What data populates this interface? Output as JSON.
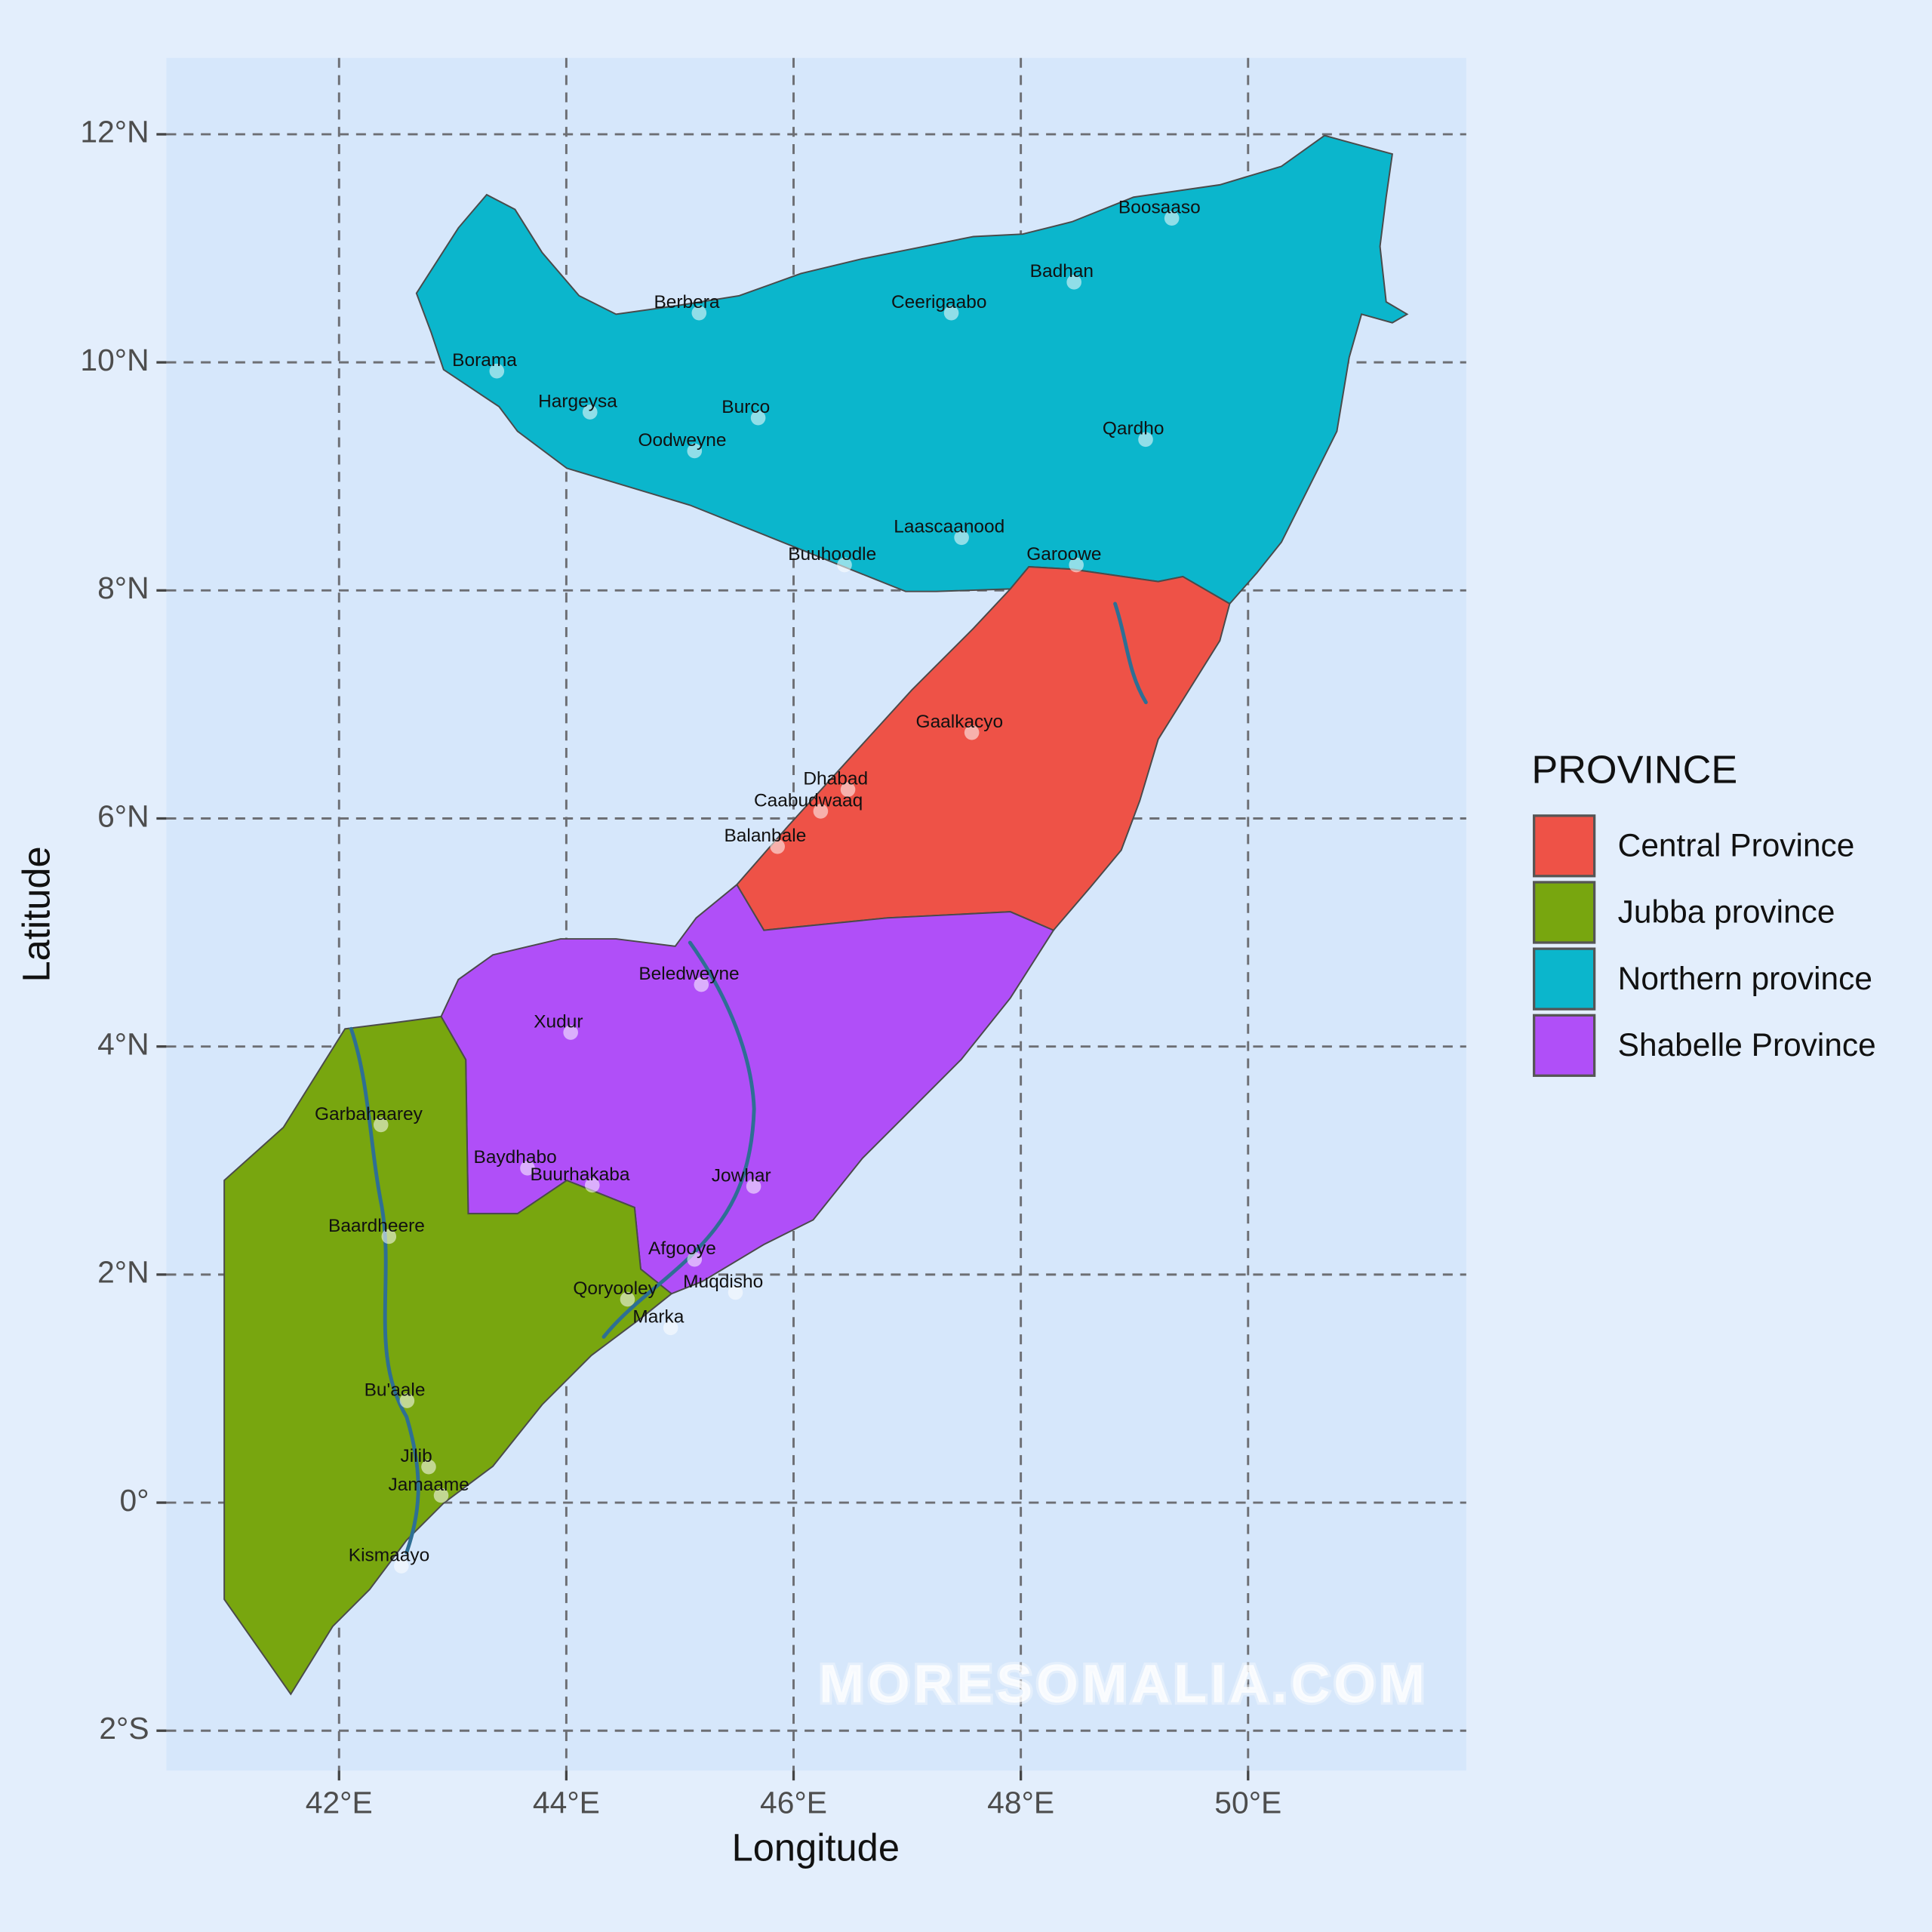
{
  "map": {
    "xlabel": "Longitude",
    "ylabel": "Latitude",
    "xlim": [
      40.48,
      51.92
    ],
    "ylim": [
      -2.35,
      12.67
    ],
    "xticks": [
      {
        "value": 42,
        "label": "42°E"
      },
      {
        "value": 44,
        "label": "44°E"
      },
      {
        "value": 46,
        "label": "46°E"
      },
      {
        "value": 48,
        "label": "48°E"
      },
      {
        "value": 50,
        "label": "50°E"
      }
    ],
    "yticks": [
      {
        "value": -2,
        "label": "2°S"
      },
      {
        "value": 0,
        "label": "0°"
      },
      {
        "value": 2,
        "label": "2°N"
      },
      {
        "value": 4,
        "label": "4°N"
      },
      {
        "value": 6,
        "label": "6°N"
      },
      {
        "value": 8,
        "label": "8°N"
      },
      {
        "value": 10,
        "label": "10°N"
      },
      {
        "value": 12,
        "label": "12°N"
      }
    ],
    "grid": true,
    "legend": {
      "title": "PROVINCE",
      "items": [
        {
          "name": "Central Province",
          "color": "#ee5247"
        },
        {
          "name": "Jubba province",
          "color": "#78a60f"
        },
        {
          "name": "Northern province",
          "color": "#0bb6cc"
        },
        {
          "name": "Shabelle Province",
          "color": "#b04ff8"
        }
      ]
    },
    "cities": [
      {
        "name": "Boosaaso",
        "lon": 49.22,
        "lat": 11.35
      },
      {
        "name": "Badhan",
        "lon": 48.36,
        "lat": 10.79
      },
      {
        "name": "Berbera",
        "lon": 45.06,
        "lat": 10.52
      },
      {
        "name": "Ceerigaabo",
        "lon": 47.28,
        "lat": 10.52
      },
      {
        "name": "Borama",
        "lon": 43.28,
        "lat": 10.01
      },
      {
        "name": "Hargeysa",
        "lon": 44.1,
        "lat": 9.65
      },
      {
        "name": "Burco",
        "lon": 45.58,
        "lat": 9.6
      },
      {
        "name": "Oodweyne",
        "lon": 45.02,
        "lat": 9.31
      },
      {
        "name": "Qardho",
        "lon": 48.99,
        "lat": 9.41
      },
      {
        "name": "Laascaanood",
        "lon": 47.37,
        "lat": 8.55
      },
      {
        "name": "Buuhoodle",
        "lon": 46.34,
        "lat": 8.31
      },
      {
        "name": "Garoowe",
        "lon": 48.38,
        "lat": 8.31
      },
      {
        "name": "Gaalkacyo",
        "lon": 47.46,
        "lat": 6.84
      },
      {
        "name": "Dhabad",
        "lon": 46.37,
        "lat": 6.34
      },
      {
        "name": "Caabudwaaq",
        "lon": 46.13,
        "lat": 6.15
      },
      {
        "name": "Balanbale",
        "lon": 45.75,
        "lat": 5.84
      },
      {
        "name": "Beledweyne",
        "lon": 45.08,
        "lat": 4.63
      },
      {
        "name": "Xudur",
        "lon": 43.93,
        "lat": 4.21
      },
      {
        "name": "Garbahaarey",
        "lon": 42.26,
        "lat": 3.4
      },
      {
        "name": "Baydhabo",
        "lon": 43.55,
        "lat": 3.02
      },
      {
        "name": "Buurhakaba",
        "lon": 44.12,
        "lat": 2.87
      },
      {
        "name": "Jowhar",
        "lon": 45.54,
        "lat": 2.86
      },
      {
        "name": "Baardheere",
        "lon": 42.33,
        "lat": 2.42
      },
      {
        "name": "Afgooye",
        "lon": 45.02,
        "lat": 2.22
      },
      {
        "name": "Muqdisho",
        "lon": 45.38,
        "lat": 1.93
      },
      {
        "name": "Qoryooley",
        "lon": 44.43,
        "lat": 1.87
      },
      {
        "name": "Marka",
        "lon": 44.81,
        "lat": 1.62
      },
      {
        "name": "Bu'aale",
        "lon": 42.49,
        "lat": 0.98
      },
      {
        "name": "Jilib",
        "lon": 42.68,
        "lat": 0.4
      },
      {
        "name": "Jamaame",
        "lon": 42.79,
        "lat": 0.15
      },
      {
        "name": "Kismaayo",
        "lon": 42.44,
        "lat": -0.47
      }
    ],
    "watermark": "MORESOMALIA.COM"
  }
}
